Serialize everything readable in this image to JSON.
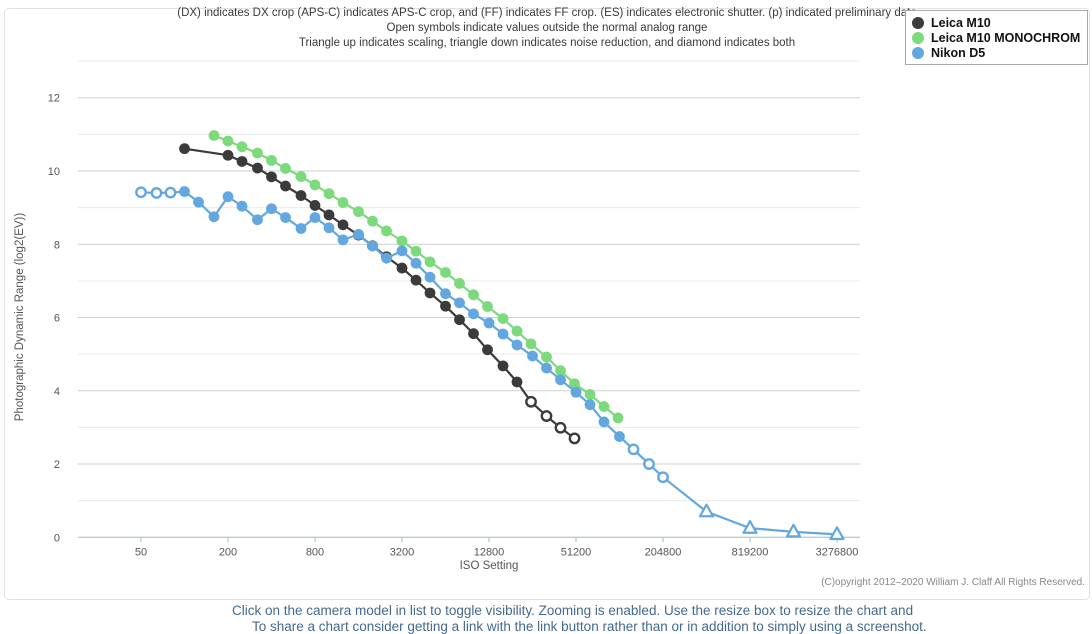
{
  "page": {
    "footer_line1": "Click on the camera model in list to toggle visibility. Zooming is enabled. Use the resize box to resize the chart and",
    "footer_line2": "To share a chart consider getting a link with the link button rather than or in addition to simply using a screenshot."
  },
  "chart_data": {
    "type": "line",
    "title_lines": [
      "(DX) indicates DX crop (APS-C) indicates APS-C crop, and (FF) indicates FF crop. (ES) indicates electronic shutter. (p) indicated preliminary data",
      "Open symbols indicate values outside the normal analog range",
      "Triangle up indicates scaling, triangle down indicates noise reduction, and diamond indicates both"
    ],
    "xlabel": "ISO Setting",
    "ylabel": "Photographic Dynamic Range (log2(EV))",
    "x_scale": "log4",
    "x_ticks": [
      50,
      200,
      800,
      3200,
      12800,
      51200,
      204800,
      819200,
      3276800
    ],
    "y_ticks": [
      0,
      2,
      4,
      6,
      8,
      10,
      12
    ],
    "y_minor_ticks": [
      1,
      3,
      5,
      7,
      9,
      11,
      13
    ],
    "ylim": [
      0,
      13
    ],
    "grid": true,
    "legend_position": "top-right",
    "copyright": "(C)opyright 2012–2020 William J. Claff All Rights Reserved.",
    "marker_codes": {
      "f": "filled circle",
      "o": "open circle (outside normal analog range)",
      "t": "open triangle up (scaling)"
    },
    "series": [
      {
        "name": "Leica M10",
        "color": "#3b3b3b",
        "points": [
          [
            100,
            10.61,
            "f"
          ],
          [
            200,
            10.43,
            "f"
          ],
          [
            250,
            10.26,
            "f"
          ],
          [
            320,
            10.08,
            "f"
          ],
          [
            400,
            9.84,
            "f"
          ],
          [
            500,
            9.59,
            "f"
          ],
          [
            640,
            9.33,
            "f"
          ],
          [
            800,
            9.06,
            "f"
          ],
          [
            1000,
            8.8,
            "f"
          ],
          [
            1250,
            8.53,
            "f"
          ],
          [
            1600,
            8.25,
            "f"
          ],
          [
            2000,
            7.96,
            "f"
          ],
          [
            2500,
            7.66,
            "f"
          ],
          [
            3200,
            7.35,
            "f"
          ],
          [
            4000,
            7.02,
            "f"
          ],
          [
            5000,
            6.67,
            "f"
          ],
          [
            6400,
            6.31,
            "f"
          ],
          [
            8000,
            5.94,
            "f"
          ],
          [
            10000,
            5.56,
            "f"
          ],
          [
            12500,
            5.12,
            "f"
          ],
          [
            16000,
            4.68,
            "f"
          ],
          [
            20000,
            4.24,
            "f"
          ],
          [
            25000,
            3.7,
            "o"
          ],
          [
            32000,
            3.31,
            "o"
          ],
          [
            40000,
            2.99,
            "o"
          ],
          [
            50000,
            2.7,
            "o"
          ]
        ]
      },
      {
        "name": "Leica M10 MONOCHROM",
        "color": "#7cd97c",
        "points": [
          [
            160,
            10.97,
            "f"
          ],
          [
            200,
            10.82,
            "f"
          ],
          [
            250,
            10.66,
            "f"
          ],
          [
            320,
            10.49,
            "f"
          ],
          [
            400,
            10.29,
            "f"
          ],
          [
            500,
            10.07,
            "f"
          ],
          [
            640,
            9.85,
            "f"
          ],
          [
            800,
            9.62,
            "f"
          ],
          [
            1000,
            9.38,
            "f"
          ],
          [
            1250,
            9.14,
            "f"
          ],
          [
            1600,
            8.89,
            "f"
          ],
          [
            2000,
            8.63,
            "f"
          ],
          [
            2500,
            8.36,
            "f"
          ],
          [
            3200,
            8.09,
            "f"
          ],
          [
            4000,
            7.81,
            "f"
          ],
          [
            5000,
            7.52,
            "f"
          ],
          [
            6400,
            7.23,
            "f"
          ],
          [
            8000,
            6.93,
            "f"
          ],
          [
            10000,
            6.62,
            "f"
          ],
          [
            12500,
            6.3,
            "f"
          ],
          [
            16000,
            5.97,
            "f"
          ],
          [
            20000,
            5.63,
            "f"
          ],
          [
            25000,
            5.28,
            "f"
          ],
          [
            32000,
            4.92,
            "f"
          ],
          [
            40000,
            4.55,
            "f"
          ],
          [
            50000,
            4.19,
            "f"
          ],
          [
            64000,
            3.9,
            "f"
          ],
          [
            80000,
            3.57,
            "f"
          ],
          [
            100000,
            3.26,
            "f"
          ]
        ]
      },
      {
        "name": "Nikon D5",
        "color": "#62a7e0",
        "points": [
          [
            50,
            9.42,
            "o"
          ],
          [
            64,
            9.4,
            "o"
          ],
          [
            80,
            9.41,
            "o"
          ],
          [
            100,
            9.44,
            "f"
          ],
          [
            125,
            9.15,
            "f"
          ],
          [
            160,
            8.75,
            "f"
          ],
          [
            200,
            9.3,
            "f"
          ],
          [
            250,
            9.04,
            "f"
          ],
          [
            320,
            8.67,
            "f"
          ],
          [
            400,
            8.97,
            "f"
          ],
          [
            500,
            8.73,
            "f"
          ],
          [
            640,
            8.43,
            "f"
          ],
          [
            800,
            8.73,
            "f"
          ],
          [
            1000,
            8.45,
            "f"
          ],
          [
            1250,
            8.12,
            "f"
          ],
          [
            1600,
            8.27,
            "f"
          ],
          [
            2000,
            7.95,
            "f"
          ],
          [
            2500,
            7.62,
            "f"
          ],
          [
            3200,
            7.82,
            "f"
          ],
          [
            4000,
            7.48,
            "f"
          ],
          [
            5000,
            7.1,
            "f"
          ],
          [
            6400,
            6.65,
            "f"
          ],
          [
            8000,
            6.4,
            "f"
          ],
          [
            10000,
            6.1,
            "f"
          ],
          [
            12800,
            5.85,
            "f"
          ],
          [
            16000,
            5.55,
            "f"
          ],
          [
            20000,
            5.25,
            "f"
          ],
          [
            25600,
            4.95,
            "f"
          ],
          [
            32000,
            4.62,
            "f"
          ],
          [
            40000,
            4.3,
            "f"
          ],
          [
            51200,
            3.96,
            "f"
          ],
          [
            64000,
            3.62,
            "f"
          ],
          [
            80000,
            3.15,
            "f"
          ],
          [
            102400,
            2.75,
            "f"
          ],
          [
            128000,
            2.4,
            "o"
          ],
          [
            163840,
            2.0,
            "o"
          ],
          [
            204800,
            1.64,
            "o"
          ],
          [
            409600,
            0.7,
            "t"
          ],
          [
            819200,
            0.25,
            "t"
          ],
          [
            1638400,
            0.15,
            "t"
          ],
          [
            3276800,
            0.08,
            "t"
          ]
        ]
      }
    ]
  }
}
